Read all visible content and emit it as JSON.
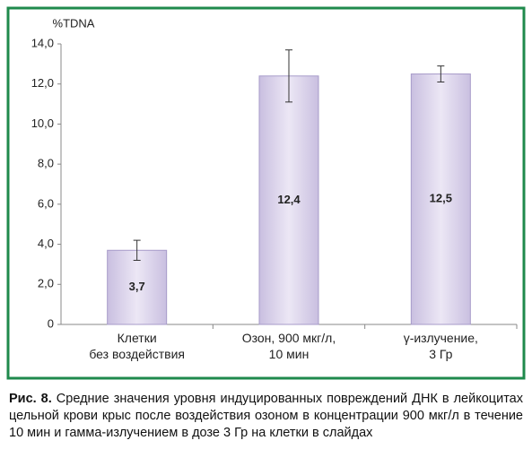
{
  "chart_data": {
    "type": "bar",
    "y_label": "%TDNA",
    "categories": [
      "Клетки\nбез воздействия",
      "Озон, 900 мкг/л,\n10 мин",
      "γ-излучение,\n3 Гр"
    ],
    "values": [
      3.7,
      12.4,
      12.5
    ],
    "value_labels": [
      "3,7",
      "12,4",
      "12,5"
    ],
    "errors": [
      0.5,
      1.3,
      0.4
    ],
    "color": "#d9d1ea",
    "ylim": [
      0,
      14
    ],
    "yticks": [
      0,
      {
        "value": 2,
        "label": "2,0"
      },
      {
        "value": 4,
        "label": "4,0"
      },
      {
        "value": 6,
        "label": "6,0"
      },
      {
        "value": 8,
        "label": "8,0"
      },
      {
        "value": 10,
        "label": "10,0"
      },
      {
        "value": 12,
        "label": "12,0"
      },
      {
        "value": 14,
        "label": "14,0"
      }
    ]
  },
  "caption": {
    "label": "Рис. 8.",
    "text": "Средние значения уровня индуцированных повреждений ДНК в лейкоцитах цельной крови крыс после воздействия озоном в концентрации 900 мкг/л в течение 10 мин и гамма-излучением в дозе 3 Гр на клетки в слайдах"
  }
}
